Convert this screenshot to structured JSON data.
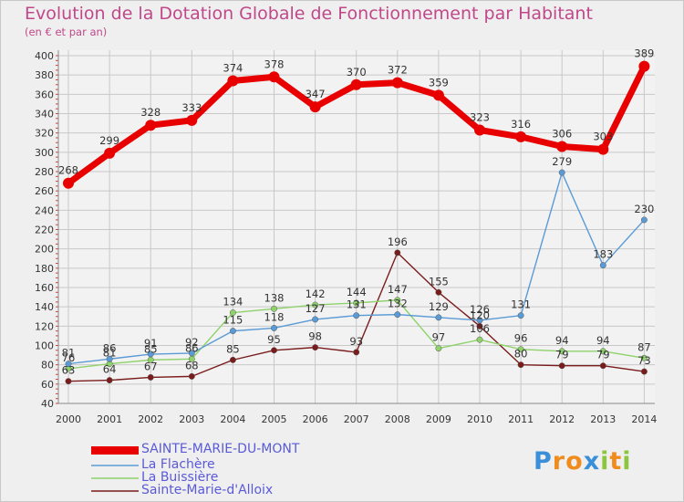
{
  "header": {
    "title": "Evolution de la Dotation Globale de Fonctionnement par Habitant",
    "subtitle": "(en € et par an)"
  },
  "logo": {
    "text": "Proxiti",
    "letters": [
      "P",
      "r",
      "o",
      "x",
      "i",
      "t",
      "i"
    ],
    "colors": [
      "#3a8fd8",
      "#f08c1e",
      "#f08c1e",
      "#3a8fd8",
      "#8cc63f",
      "#f08c1e",
      "#8cc63f"
    ]
  },
  "colors": {
    "background": "#efefef",
    "grid": "#c8c8c8",
    "axis_text": "#333333",
    "title": "#c0488a",
    "legend_text": "#5a5ad8"
  },
  "chart_data": {
    "type": "line",
    "title": "Evolution de la Dotation Globale de Fonctionnement par Habitant",
    "subtitle": "(en € et par an)",
    "xlabel": "",
    "ylabel": "",
    "ylim": [
      40,
      400
    ],
    "yticks": [
      40,
      60,
      80,
      100,
      120,
      140,
      160,
      180,
      200,
      220,
      240,
      260,
      280,
      300,
      320,
      340,
      360,
      380,
      400
    ],
    "grid": true,
    "legend_position": "bottom-left",
    "categories": [
      "2000",
      "2001",
      "2002",
      "2003",
      "2004",
      "2005",
      "2006",
      "2007",
      "2008",
      "2009",
      "2010",
      "2011",
      "2012",
      "2013",
      "2014"
    ],
    "series": [
      {
        "name": "SAINTE-MARIE-DU-MONT",
        "color": "#e80000",
        "values": [
          268,
          299,
          328,
          333,
          374,
          378,
          347,
          370,
          372,
          359,
          323,
          316,
          306,
          303,
          389
        ],
        "labels": [
          "268",
          "299",
          "328",
          "333",
          "374",
          "378",
          "347",
          "370",
          "372",
          "359",
          "323",
          "316",
          "306",
          "303",
          "389"
        ]
      },
      {
        "name": "La Flachère",
        "color": "#5b9bd5",
        "values": [
          81,
          86,
          91,
          92,
          115,
          118,
          127,
          131,
          132,
          129,
          126,
          131,
          279,
          183,
          230
        ],
        "labels": [
          "81",
          "86",
          "91",
          "92",
          "115",
          "118",
          "127",
          "131",
          "132",
          "129",
          "126",
          "131",
          "279",
          "183",
          "230"
        ]
      },
      {
        "name": "La Buissière",
        "color": "#8fd26b",
        "values": [
          76,
          81,
          85,
          86,
          134,
          138,
          142,
          144,
          147,
          97,
          106,
          96,
          94,
          94,
          87
        ],
        "labels": [
          "76",
          "81",
          "85",
          "86",
          "134",
          "138",
          "142",
          "144",
          "147",
          "97",
          "106",
          "96",
          "94",
          "94",
          "87"
        ]
      },
      {
        "name": "Sainte-Marie-d'Alloix",
        "color": "#7a1c1c",
        "values": [
          63,
          64,
          67,
          68,
          85,
          95,
          98,
          93,
          196,
          155,
          120,
          80,
          79,
          79,
          73
        ],
        "labels": [
          "63",
          "64",
          "67",
          "68",
          "85",
          "95",
          "98",
          "93",
          "196",
          "155",
          "120",
          "80",
          "79",
          "79",
          "73"
        ]
      }
    ]
  }
}
